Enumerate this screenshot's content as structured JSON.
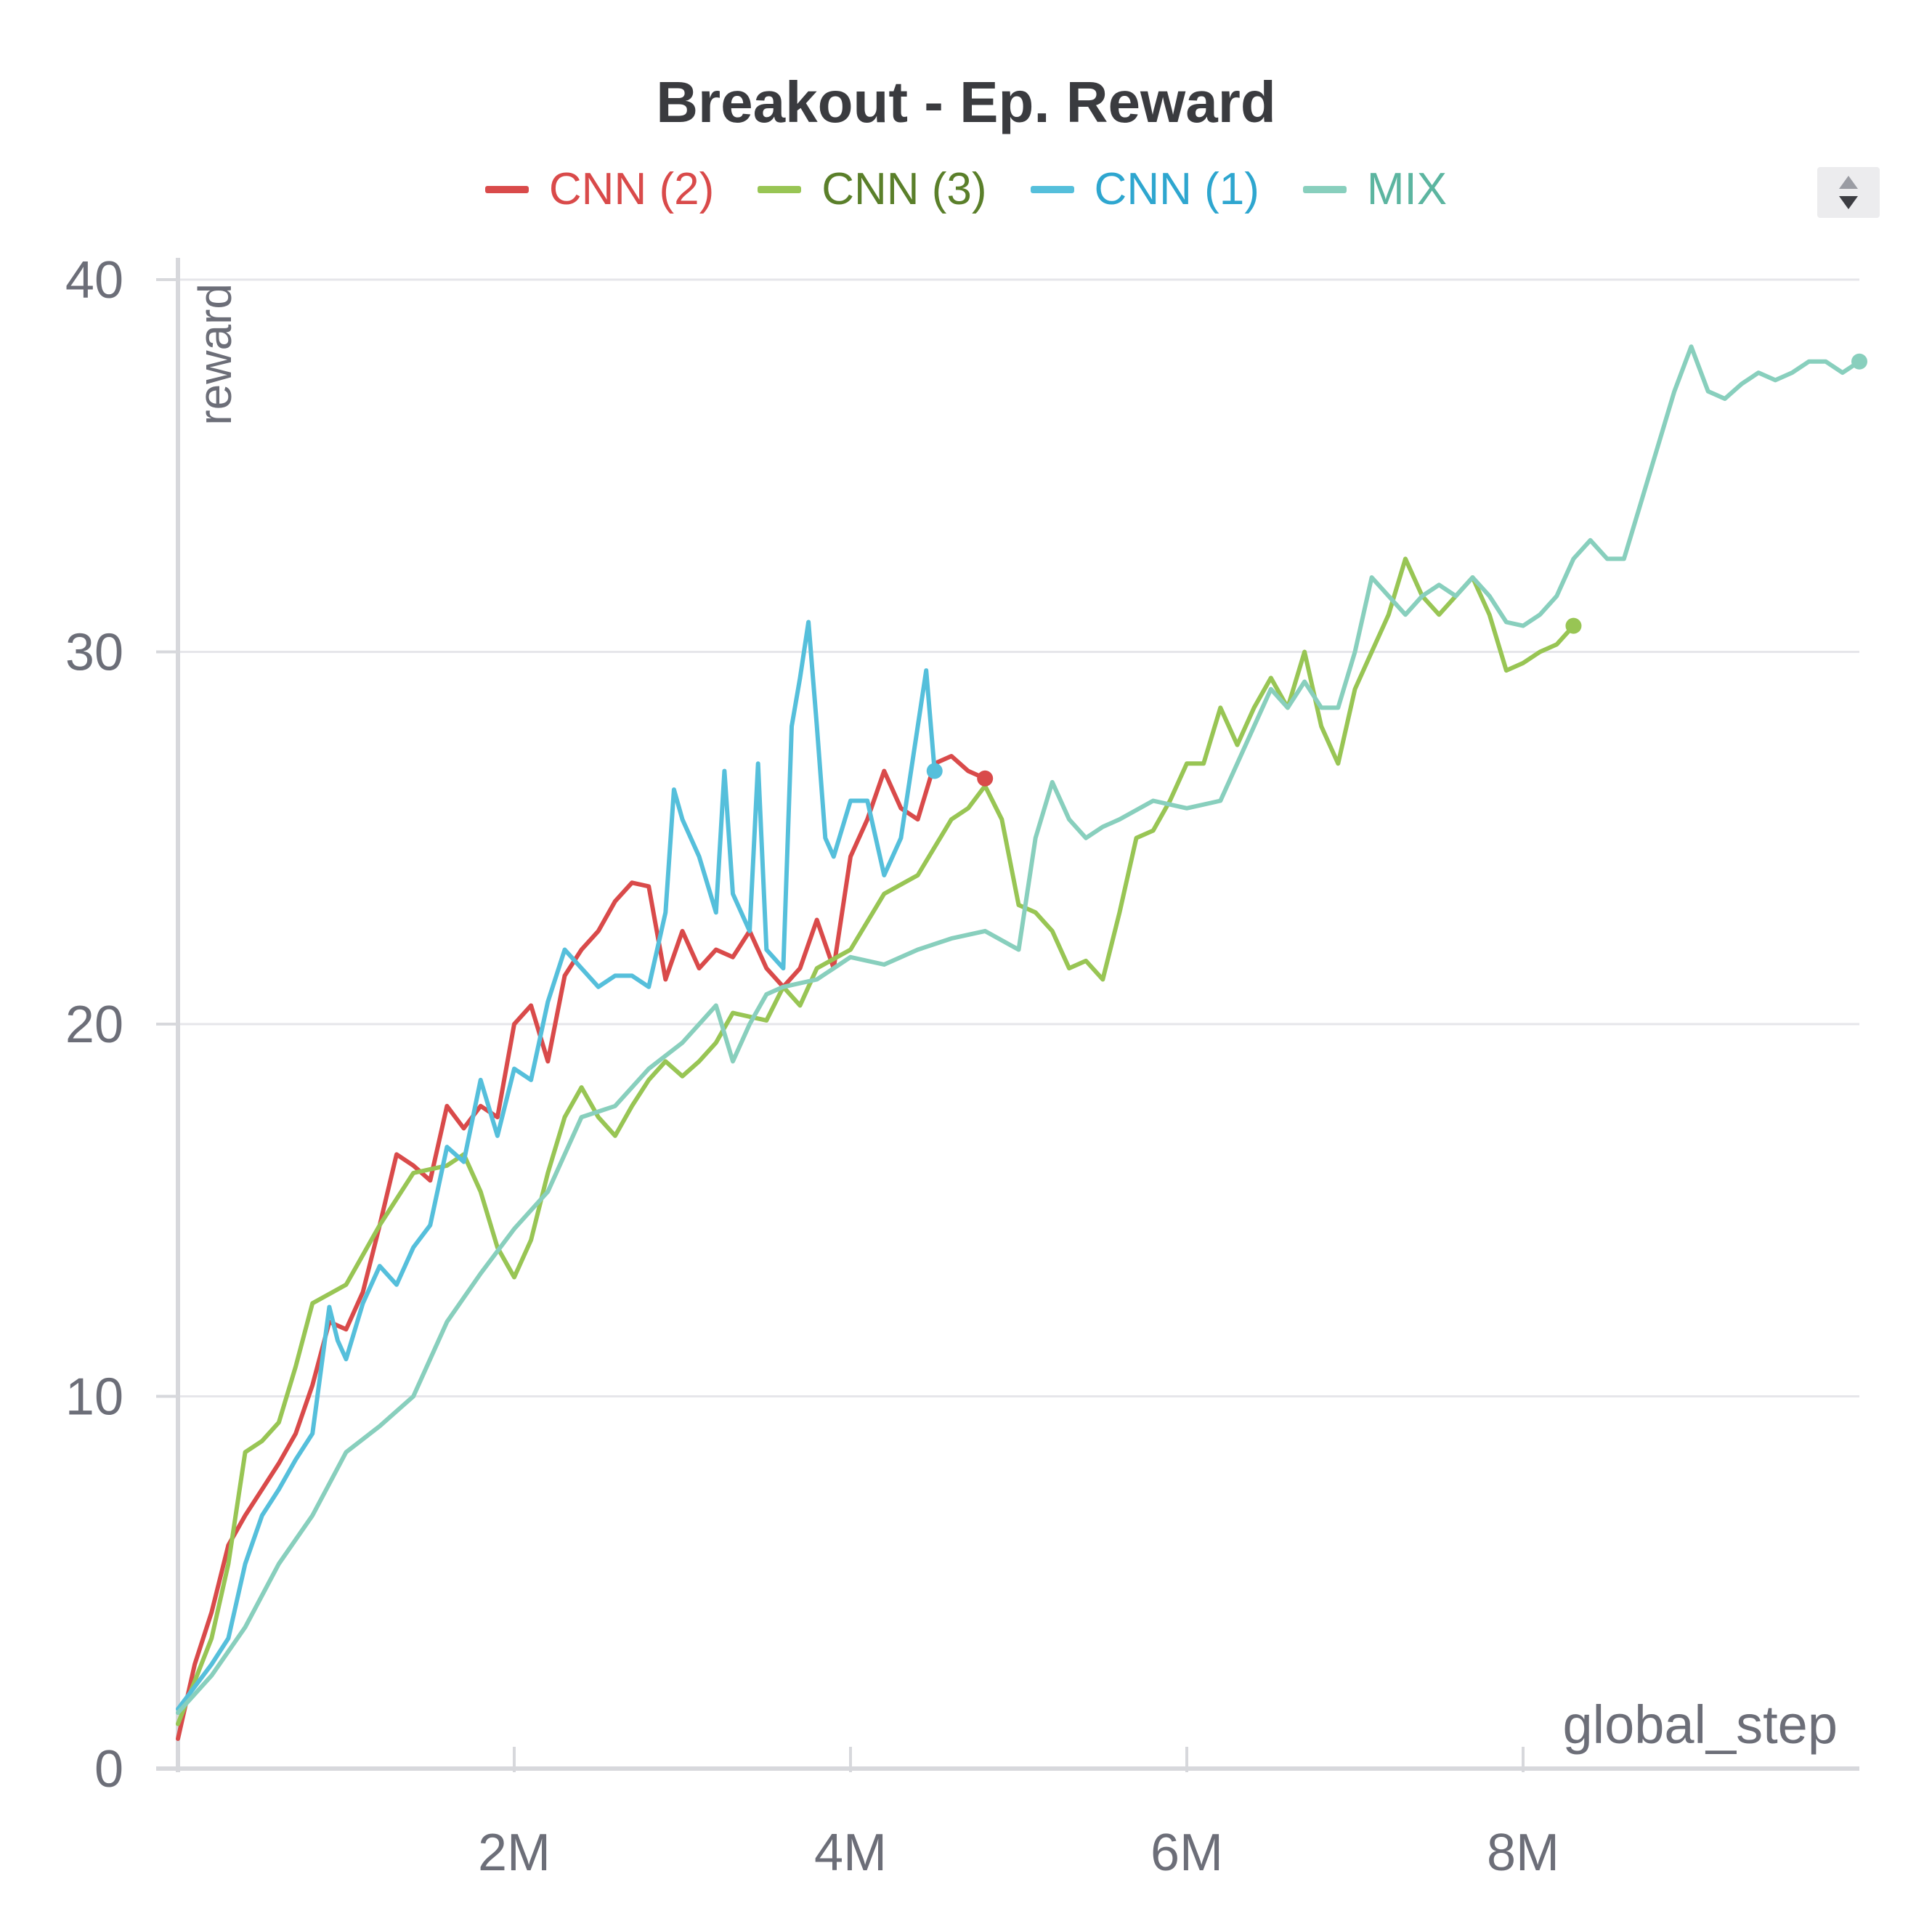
{
  "chart_data": {
    "type": "line",
    "title": "Breakout - Ep. Reward",
    "xlabel": "global_step",
    "ylabel": "reward",
    "xlim": [
      0,
      10000000
    ],
    "ylim": [
      0,
      40
    ],
    "x_ticks": [
      {
        "value": 2000000,
        "label": "2M"
      },
      {
        "value": 4000000,
        "label": "4M"
      },
      {
        "value": 6000000,
        "label": "6M"
      },
      {
        "value": 8000000,
        "label": "8M"
      }
    ],
    "y_ticks": [
      {
        "value": 0,
        "label": "0"
      },
      {
        "value": 10,
        "label": "10"
      },
      {
        "value": 20,
        "label": "20"
      },
      {
        "value": 30,
        "label": "30"
      },
      {
        "value": 40,
        "label": "40"
      }
    ],
    "grid": true,
    "legend_position": "top-center",
    "series": [
      {
        "name": "CNN (2)",
        "color": "#d94a4a",
        "x": [
          0,
          100000,
          200000,
          300000,
          400000,
          500000,
          600000,
          700000,
          800000,
          900000,
          1000000,
          1100000,
          1200000,
          1300000,
          1400000,
          1500000,
          1600000,
          1700000,
          1800000,
          1900000,
          2000000,
          2100000,
          2200000,
          2300000,
          2400000,
          2500000,
          2600000,
          2700000,
          2800000,
          2900000,
          3000000,
          3100000,
          3200000,
          3300000,
          3400000,
          3500000,
          3600000,
          3700000,
          3800000,
          3900000,
          4000000,
          4100000,
          4200000,
          4300000,
          4400000,
          4500000,
          4600000,
          4700000,
          4800000
        ],
        "y": [
          0.8,
          2.8,
          4.2,
          6.0,
          6.8,
          7.5,
          8.2,
          9.0,
          10.3,
          12.0,
          11.8,
          12.8,
          14.6,
          16.5,
          16.2,
          15.8,
          17.8,
          17.2,
          17.8,
          17.5,
          20.0,
          20.5,
          19.0,
          21.3,
          22.0,
          22.5,
          23.3,
          23.8,
          23.7,
          21.2,
          22.5,
          21.5,
          22.0,
          21.8,
          22.5,
          21.5,
          21.0,
          21.5,
          22.8,
          21.5,
          24.5,
          25.5,
          26.8,
          25.8,
          25.5,
          27.0,
          27.2,
          26.8,
          26.6
        ]
      },
      {
        "name": "CNN (3)",
        "color": "#98c554",
        "x": [
          0,
          200000,
          300000,
          400000,
          500000,
          600000,
          700000,
          800000,
          1000000,
          1200000,
          1400000,
          1600000,
          1700000,
          1800000,
          1900000,
          2000000,
          2100000,
          2200000,
          2300000,
          2400000,
          2500000,
          2600000,
          2700000,
          2800000,
          2900000,
          3000000,
          3100000,
          3200000,
          3300000,
          3400000,
          3500000,
          3600000,
          3700000,
          3800000,
          4000000,
          4200000,
          4400000,
          4600000,
          4700000,
          4800000,
          4900000,
          5000000,
          5100000,
          5200000,
          5300000,
          5400000,
          5500000,
          5600000,
          5700000,
          5800000,
          5900000,
          6000000,
          6100000,
          6200000,
          6300000,
          6400000,
          6500000,
          6600000,
          6700000,
          6800000,
          6900000,
          7000000,
          7100000,
          7200000,
          7300000,
          7400000,
          7500000,
          7600000,
          7700000,
          7800000,
          7900000,
          8000000,
          8100000,
          8200000,
          8300000
        ],
        "y": [
          1.2,
          3.5,
          5.5,
          8.5,
          8.8,
          9.3,
          10.8,
          12.5,
          13.0,
          14.6,
          16.0,
          16.2,
          16.5,
          15.5,
          14.0,
          13.2,
          14.2,
          16.0,
          17.5,
          18.3,
          17.5,
          17.0,
          17.8,
          18.5,
          19.0,
          18.6,
          19.0,
          19.5,
          20.3,
          20.2,
          20.1,
          21.0,
          20.5,
          21.5,
          22.0,
          23.5,
          24.0,
          25.5,
          25.8,
          26.4,
          25.5,
          23.2,
          23.0,
          22.5,
          21.5,
          21.7,
          21.2,
          23.0,
          25.0,
          25.2,
          26.0,
          27.0,
          27.0,
          28.5,
          27.5,
          28.5,
          29.3,
          28.5,
          30.0,
          28.0,
          27.0,
          29.0,
          30.0,
          31.0,
          32.5,
          31.5,
          31.0,
          31.5,
          32.0,
          31.0,
          29.5,
          29.7,
          30.0,
          30.2,
          30.7
        ]
      },
      {
        "name": "CNN (1)",
        "color": "#55bfdb",
        "x": [
          0,
          100000,
          200000,
          300000,
          400000,
          500000,
          600000,
          700000,
          800000,
          900000,
          950000,
          1000000,
          1100000,
          1200000,
          1300000,
          1400000,
          1500000,
          1600000,
          1650000,
          1700000,
          1800000,
          1900000,
          2000000,
          2100000,
          2200000,
          2300000,
          2400000,
          2500000,
          2600000,
          2700000,
          2800000,
          2900000,
          2950000,
          3000000,
          3100000,
          3200000,
          3250000,
          3300000,
          3400000,
          3450000,
          3500000,
          3600000,
          3650000,
          3700000,
          3750000,
          3800000,
          3850000,
          3900000,
          4000000,
          4100000,
          4200000,
          4300000,
          4400000,
          4450000,
          4500000
        ],
        "y": [
          1.6,
          2.2,
          2.8,
          3.5,
          5.5,
          6.8,
          7.5,
          8.3,
          9.0,
          12.4,
          11.5,
          11.0,
          12.5,
          13.5,
          13.0,
          14.0,
          14.6,
          16.7,
          16.5,
          16.3,
          18.5,
          17.0,
          18.8,
          18.5,
          20.6,
          22.0,
          21.5,
          21.0,
          21.3,
          21.3,
          21.0,
          23.0,
          26.3,
          25.5,
          24.5,
          23.0,
          26.8,
          23.5,
          22.5,
          27.0,
          22.0,
          21.5,
          28.0,
          29.3,
          30.8,
          28.0,
          25.0,
          24.5,
          26.0,
          26.0,
          24.0,
          25.0,
          28.0,
          29.5,
          26.8
        ]
      },
      {
        "name": "MIX",
        "color": "#88cfbd",
        "x": [
          0,
          200000,
          400000,
          600000,
          800000,
          1000000,
          1200000,
          1400000,
          1600000,
          1800000,
          2000000,
          2200000,
          2400000,
          2600000,
          2800000,
          3000000,
          3200000,
          3300000,
          3400000,
          3500000,
          3600000,
          3800000,
          4000000,
          4200000,
          4400000,
          4600000,
          4800000,
          5000000,
          5100000,
          5200000,
          5300000,
          5400000,
          5500000,
          5600000,
          5800000,
          6000000,
          6200000,
          6400000,
          6500000,
          6600000,
          6700000,
          6800000,
          6900000,
          7000000,
          7100000,
          7200000,
          7300000,
          7400000,
          7500000,
          7600000,
          7700000,
          7800000,
          7900000,
          8000000,
          8100000,
          8200000,
          8300000,
          8400000,
          8500000,
          8600000,
          8700000,
          8800000,
          8900000,
          9000000,
          9100000,
          9200000,
          9300000,
          9400000,
          9500000,
          9600000,
          9700000,
          9800000,
          9900000,
          10000000
        ],
        "y": [
          1.5,
          2.5,
          3.8,
          5.5,
          6.8,
          8.5,
          9.2,
          10.0,
          12.0,
          13.3,
          14.5,
          15.5,
          17.5,
          17.8,
          18.8,
          19.5,
          20.5,
          19.0,
          20.0,
          20.8,
          21.0,
          21.2,
          21.8,
          21.6,
          22.0,
          22.3,
          22.5,
          22.0,
          25.0,
          26.5,
          25.5,
          25.0,
          25.3,
          25.5,
          26.0,
          25.8,
          26.0,
          28.0,
          29.0,
          28.5,
          29.2,
          28.5,
          28.5,
          30.0,
          32.0,
          31.5,
          31.0,
          31.5,
          31.8,
          31.5,
          32.0,
          31.5,
          30.8,
          30.7,
          31.0,
          31.5,
          32.5,
          33.0,
          32.5,
          32.5,
          34.0,
          35.5,
          37.0,
          38.2,
          37.0,
          36.8,
          37.2,
          37.5,
          37.3,
          37.5,
          37.8,
          37.8,
          37.5,
          37.8
        ]
      }
    ]
  }
}
